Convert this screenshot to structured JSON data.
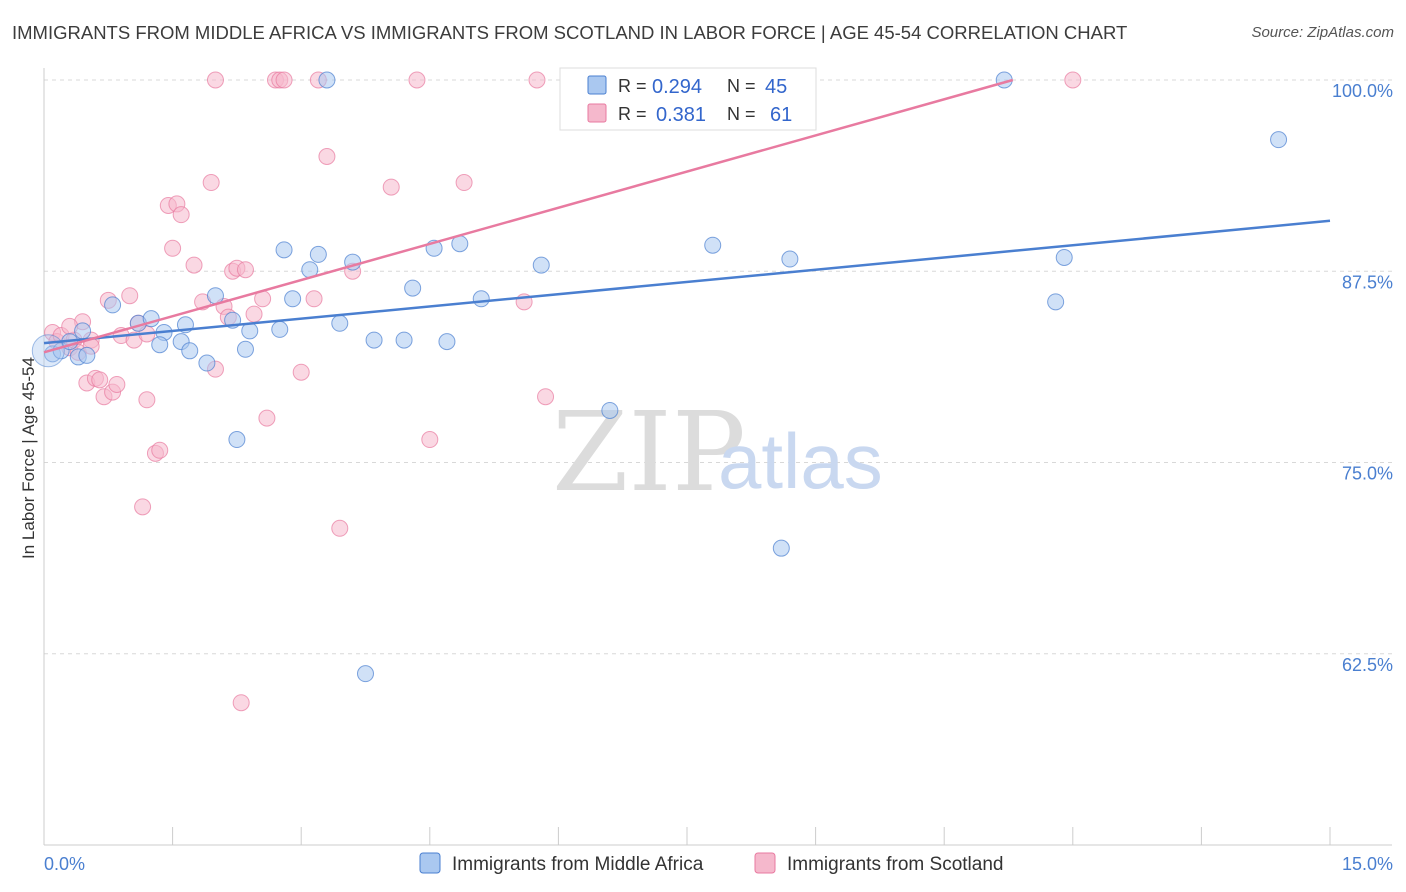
{
  "title": "IMMIGRANTS FROM MIDDLE AFRICA VS IMMIGRANTS FROM SCOTLAND IN LABOR FORCE | AGE 45-54 CORRELATION CHART",
  "source": "Source: ZipAtlas.com",
  "watermark": {
    "zip": "ZIP",
    "atlas": "atlas"
  },
  "colors": {
    "blue": "#4a7fd0",
    "pink": "#e87aa0",
    "blue_fill": "#aac8f0",
    "pink_fill": "#f5b8cc"
  },
  "legend": {
    "r_label": "R =",
    "n_label": "N =",
    "blue": {
      "r": "0.294",
      "n": "45"
    },
    "pink": {
      "r": "0.381",
      "n": "61"
    }
  },
  "chart_data": {
    "type": "scatter",
    "xlabel": "",
    "ylabel": "In Labor Force | Age 45-54",
    "xlim": [
      0,
      15
    ],
    "ylim": [
      50,
      100
    ],
    "x_tick_labels": [
      "0.0%",
      "15.0%"
    ],
    "y_ticks": [
      62.5,
      75.0,
      87.5,
      100.0
    ],
    "y_tick_labels": [
      "62.5%",
      "75.0%",
      "87.5%",
      "100.0%"
    ],
    "grid": "horizontal dashed",
    "legend_placement": "top-center",
    "series": [
      {
        "name": "Immigrants from Middle Africa",
        "color": "#4a7fd0",
        "trend": [
          [
            0.0,
            82.8
          ],
          [
            15.0,
            90.8
          ]
        ],
        "points": [
          [
            0.1,
            82.1
          ],
          [
            0.2,
            82.3
          ],
          [
            0.3,
            82.9
          ],
          [
            0.4,
            81.9
          ],
          [
            0.45,
            83.6
          ],
          [
            0.8,
            85.3
          ],
          [
            1.1,
            84.1
          ],
          [
            1.25,
            84.4
          ],
          [
            1.4,
            83.5
          ],
          [
            1.65,
            84.0
          ],
          [
            1.35,
            82.7
          ],
          [
            1.6,
            82.9
          ],
          [
            1.7,
            82.3
          ],
          [
            1.9,
            81.5
          ],
          [
            2.0,
            85.9
          ],
          [
            2.2,
            84.3
          ],
          [
            2.35,
            82.4
          ],
          [
            2.4,
            83.6
          ],
          [
            2.75,
            83.7
          ],
          [
            2.8,
            88.9
          ],
          [
            2.9,
            85.7
          ],
          [
            3.1,
            87.6
          ],
          [
            3.2,
            88.6
          ],
          [
            3.3,
            100.0
          ],
          [
            3.45,
            84.1
          ],
          [
            3.6,
            88.1
          ],
          [
            3.85,
            83.0
          ],
          [
            4.2,
            83.0
          ],
          [
            4.3,
            86.4
          ],
          [
            4.55,
            89.0
          ],
          [
            4.7,
            82.9
          ],
          [
            4.85,
            89.3
          ],
          [
            5.1,
            85.7
          ],
          [
            5.8,
            87.9
          ],
          [
            6.6,
            78.4
          ],
          [
            7.8,
            89.2
          ],
          [
            8.6,
            69.4
          ],
          [
            8.7,
            88.3
          ],
          [
            11.2,
            100.0
          ],
          [
            11.8,
            85.5
          ],
          [
            11.9,
            88.4
          ],
          [
            14.4,
            96.1
          ],
          [
            2.25,
            76.5
          ],
          [
            3.75,
            61.2
          ],
          [
            0.5,
            82.0
          ]
        ]
      },
      {
        "name": "Immigrants from Scotland",
        "color": "#e87aa0",
        "trend": [
          [
            0.0,
            82.2
          ],
          [
            11.3,
            100.0
          ]
        ],
        "points": [
          [
            0.1,
            83.5
          ],
          [
            0.15,
            82.9
          ],
          [
            0.2,
            83.3
          ],
          [
            0.3,
            82.5
          ],
          [
            0.35,
            83.0
          ],
          [
            0.4,
            82.2
          ],
          [
            0.45,
            84.2
          ],
          [
            0.5,
            80.2
          ],
          [
            0.55,
            83.0
          ],
          [
            0.6,
            80.5
          ],
          [
            0.65,
            80.4
          ],
          [
            0.7,
            79.3
          ],
          [
            0.8,
            79.6
          ],
          [
            0.85,
            80.1
          ],
          [
            0.9,
            83.3
          ],
          [
            1.0,
            85.9
          ],
          [
            1.05,
            83.0
          ],
          [
            1.1,
            84.1
          ],
          [
            1.2,
            79.1
          ],
          [
            1.3,
            75.6
          ],
          [
            1.35,
            75.8
          ],
          [
            1.45,
            91.8
          ],
          [
            1.5,
            89.0
          ],
          [
            1.55,
            91.9
          ],
          [
            1.6,
            91.2
          ],
          [
            1.75,
            87.9
          ],
          [
            1.85,
            85.5
          ],
          [
            1.95,
            93.3
          ],
          [
            2.0,
            81.1
          ],
          [
            2.1,
            85.2
          ],
          [
            2.15,
            84.5
          ],
          [
            2.2,
            87.5
          ],
          [
            2.25,
            87.7
          ],
          [
            2.35,
            87.6
          ],
          [
            2.45,
            84.7
          ],
          [
            2.55,
            85.7
          ],
          [
            2.6,
            77.9
          ],
          [
            2.7,
            100.0
          ],
          [
            2.75,
            100.0
          ],
          [
            2.8,
            100.0
          ],
          [
            3.0,
            80.9
          ],
          [
            3.15,
            85.7
          ],
          [
            3.3,
            95.0
          ],
          [
            3.45,
            70.7
          ],
          [
            3.6,
            87.5
          ],
          [
            4.05,
            93.0
          ],
          [
            4.35,
            100.0
          ],
          [
            4.5,
            76.5
          ],
          [
            4.9,
            93.3
          ],
          [
            5.6,
            85.5
          ],
          [
            5.75,
            100.0
          ],
          [
            5.85,
            79.3
          ],
          [
            1.15,
            72.1
          ],
          [
            2.3,
            59.3
          ],
          [
            2.0,
            100.0
          ],
          [
            3.2,
            100.0
          ],
          [
            12.0,
            100.0
          ],
          [
            0.75,
            85.6
          ],
          [
            1.2,
            83.4
          ],
          [
            0.3,
            83.9
          ],
          [
            0.55,
            82.6
          ]
        ]
      }
    ]
  }
}
